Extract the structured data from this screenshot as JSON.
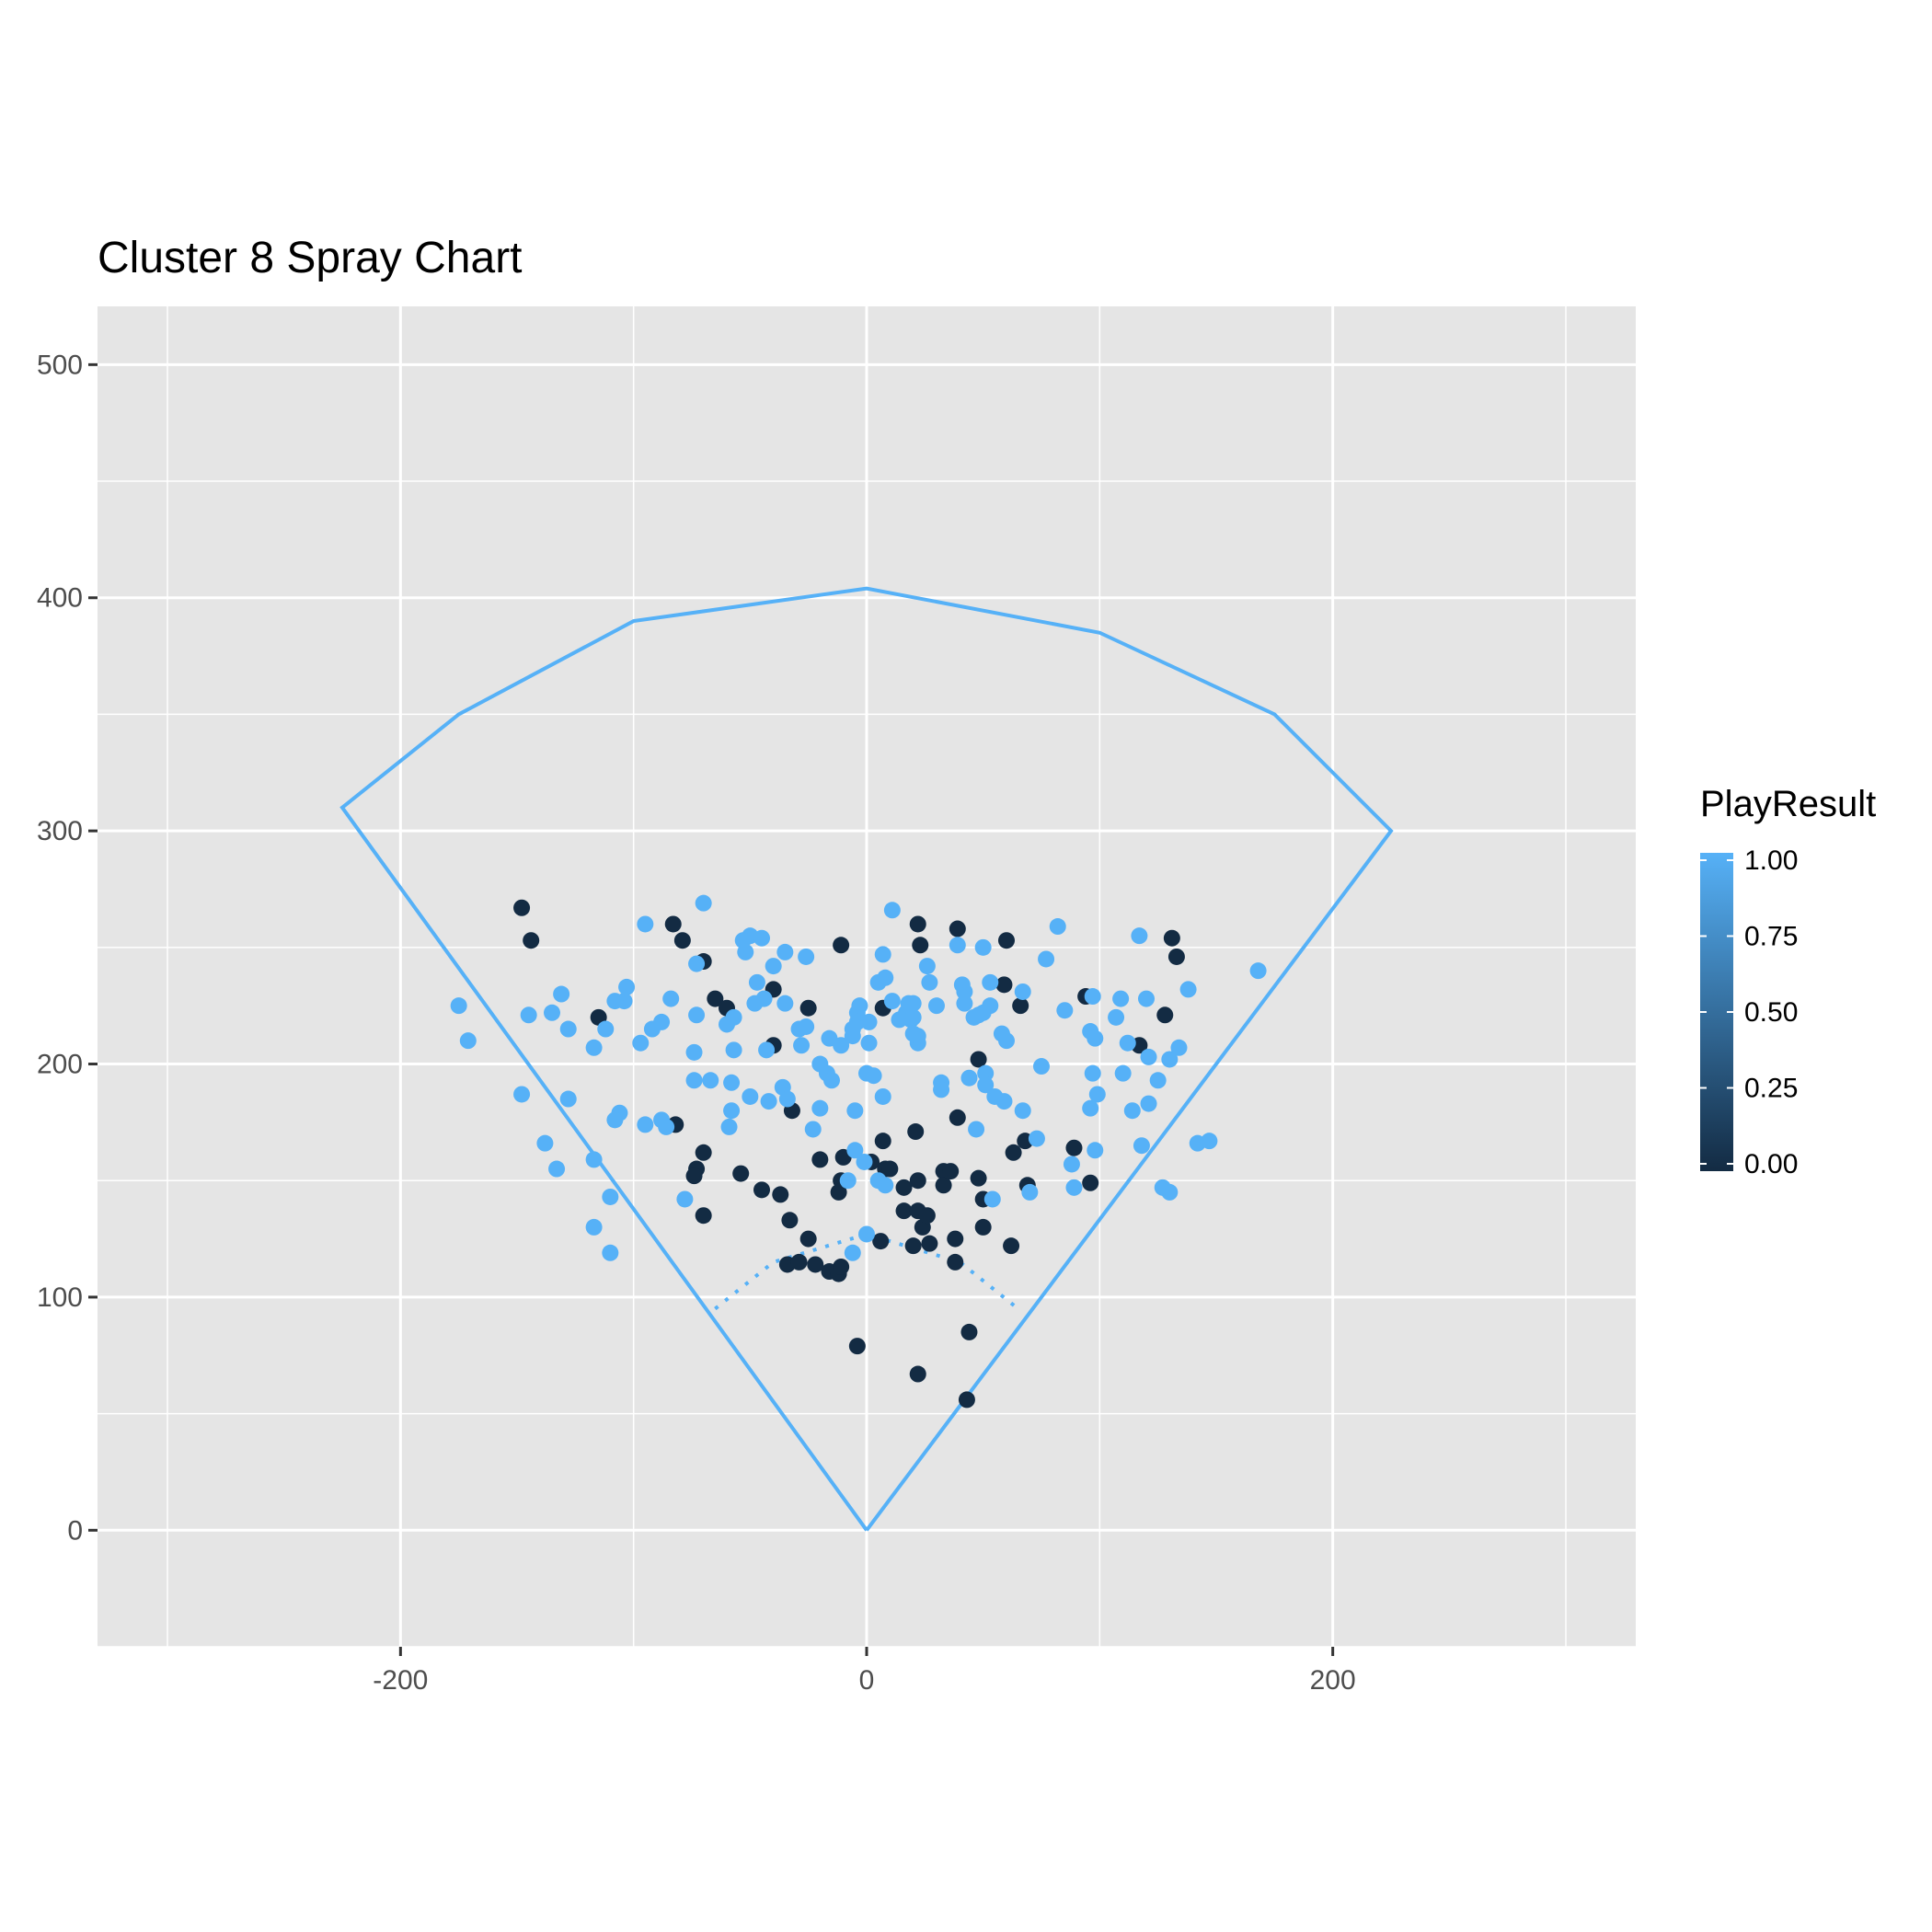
{
  "chart_data": {
    "type": "scatter",
    "title": "Cluster 8 Spray Chart",
    "xlabel": "",
    "ylabel": "",
    "xlim": [
      -330,
      330
    ],
    "ylim": [
      -50,
      525
    ],
    "x_ticks": [
      -200,
      0,
      200
    ],
    "x_tick_labels": [
      "-200",
      "0",
      "200"
    ],
    "y_ticks": [
      0,
      100,
      200,
      300,
      400,
      500
    ],
    "y_tick_labels": [
      "0",
      "100",
      "200",
      "300",
      "400",
      "500"
    ],
    "grid": true,
    "legend": {
      "position": "right",
      "title": "PlayResult",
      "type": "colorbar",
      "range": [
        0,
        1
      ],
      "breaks": [
        0,
        0.25,
        0.5,
        0.75,
        1
      ],
      "labels": [
        "0.00",
        "0.25",
        "0.50",
        "0.75",
        "1.00"
      ],
      "low_color": "#132B43",
      "high_color": "#56B1F7"
    },
    "field_outline": {
      "color": "#56B1F7",
      "outline": [
        [
          0,
          0
        ],
        [
          -225,
          310
        ],
        [
          -175,
          350
        ],
        [
          -100,
          390
        ],
        [
          0,
          404
        ],
        [
          100,
          385
        ],
        [
          175,
          350
        ],
        [
          225,
          300
        ],
        [
          0,
          0
        ]
      ],
      "infield_arc": [
        [
          -65,
          95
        ],
        [
          -40,
          115
        ],
        [
          0,
          127
        ],
        [
          40,
          115
        ],
        [
          65,
          95
        ]
      ]
    },
    "points": [
      [
        -148,
        267,
        0
      ],
      [
        -144,
        253,
        0
      ],
      [
        -83,
        260,
        0
      ],
      [
        -79,
        253,
        0
      ],
      [
        -70,
        244,
        0
      ],
      [
        -65,
        228,
        0
      ],
      [
        -60,
        224,
        0
      ],
      [
        -40,
        232,
        0
      ],
      [
        -25,
        224,
        0
      ],
      [
        -40,
        208,
        0
      ],
      [
        -32,
        180,
        0
      ],
      [
        -115,
        220,
        0
      ],
      [
        -82,
        174,
        0
      ],
      [
        -70,
        162,
        0
      ],
      [
        -73,
        155,
        0
      ],
      [
        -74,
        152,
        0
      ],
      [
        -70,
        135,
        0
      ],
      [
        -54,
        153,
        0
      ],
      [
        -45,
        146,
        0
      ],
      [
        -37,
        144,
        0
      ],
      [
        -33,
        133,
        0
      ],
      [
        -25,
        125,
        0
      ],
      [
        -34,
        114,
        0
      ],
      [
        -29,
        115,
        0
      ],
      [
        -22,
        114,
        0
      ],
      [
        -16,
        111,
        0
      ],
      [
        -12,
        110,
        0
      ],
      [
        -11,
        113,
        0
      ],
      [
        -20,
        159,
        0
      ],
      [
        -11,
        150,
        0
      ],
      [
        -12,
        145,
        0
      ],
      [
        -10,
        160,
        0
      ],
      [
        -11,
        251,
        0
      ],
      [
        7,
        224,
        0
      ],
      [
        22,
        260,
        0
      ],
      [
        23,
        251,
        0
      ],
      [
        39,
        258,
        0
      ],
      [
        60,
        253,
        0
      ],
      [
        59,
        234,
        0
      ],
      [
        66,
        225,
        0
      ],
      [
        94,
        229,
        0
      ],
      [
        131,
        254,
        0
      ],
      [
        133,
        246,
        0
      ],
      [
        128,
        221,
        0
      ],
      [
        117,
        208,
        0
      ],
      [
        48,
        202,
        0
      ],
      [
        39,
        177,
        0
      ],
      [
        68,
        167,
        0
      ],
      [
        63,
        162,
        0
      ],
      [
        21,
        171,
        0
      ],
      [
        7,
        167,
        0
      ],
      [
        2,
        158,
        0
      ],
      [
        8,
        155,
        0
      ],
      [
        10,
        155,
        0
      ],
      [
        16,
        147,
        0
      ],
      [
        16,
        137,
        0
      ],
      [
        22,
        150,
        0
      ],
      [
        22,
        137,
        0
      ],
      [
        24,
        130,
        0
      ],
      [
        26,
        135,
        0
      ],
      [
        27,
        123,
        0
      ],
      [
        20,
        122,
        0
      ],
      [
        33,
        154,
        0
      ],
      [
        33,
        148,
        0
      ],
      [
        36,
        154,
        0
      ],
      [
        38,
        125,
        0
      ],
      [
        38,
        115,
        0
      ],
      [
        48,
        151,
        0
      ],
      [
        50,
        142,
        0
      ],
      [
        50,
        130,
        0
      ],
      [
        69,
        148,
        0
      ],
      [
        62,
        122,
        0
      ],
      [
        89,
        164,
        0
      ],
      [
        96,
        149,
        0
      ],
      [
        6,
        124,
        0
      ],
      [
        -4,
        79,
        0
      ],
      [
        22,
        67,
        0
      ],
      [
        44,
        85,
        0
      ],
      [
        43,
        56,
        0
      ],
      [
        -70,
        269,
        1
      ],
      [
        -95,
        260,
        1
      ],
      [
        -50,
        255,
        1
      ],
      [
        -53,
        253,
        1
      ],
      [
        -45,
        254,
        1
      ],
      [
        -52,
        248,
        1
      ],
      [
        -35,
        248,
        1
      ],
      [
        -26,
        246,
        1
      ],
      [
        -40,
        242,
        1
      ],
      [
        -73,
        243,
        1
      ],
      [
        -47,
        235,
        1
      ],
      [
        -44,
        228,
        1
      ],
      [
        -48,
        226,
        1
      ],
      [
        -35,
        226,
        1
      ],
      [
        -57,
        220,
        1
      ],
      [
        -60,
        217,
        1
      ],
      [
        -73,
        221,
        1
      ],
      [
        -88,
        218,
        1
      ],
      [
        -92,
        215,
        1
      ],
      [
        -84,
        228,
        1
      ],
      [
        -103,
        233,
        1
      ],
      [
        -104,
        227,
        1
      ],
      [
        -108,
        227,
        1
      ],
      [
        -97,
        209,
        1
      ],
      [
        -112,
        215,
        1
      ],
      [
        -117,
        207,
        1
      ],
      [
        -128,
        215,
        1
      ],
      [
        -135,
        222,
        1
      ],
      [
        -131,
        230,
        1
      ],
      [
        -145,
        221,
        1
      ],
      [
        -175,
        225,
        1
      ],
      [
        -171,
        210,
        1
      ],
      [
        -43,
        206,
        1
      ],
      [
        -57,
        206,
        1
      ],
      [
        -74,
        205,
        1
      ],
      [
        -29,
        215,
        1
      ],
      [
        -28,
        208,
        1
      ],
      [
        -26,
        216,
        1
      ],
      [
        -20,
        200,
        1
      ],
      [
        -17,
        196,
        1
      ],
      [
        -16,
        211,
        1
      ],
      [
        -11,
        208,
        1
      ],
      [
        -6,
        212,
        1
      ],
      [
        -6,
        215,
        1
      ],
      [
        -4,
        218,
        1
      ],
      [
        -4,
        222,
        1
      ],
      [
        -3,
        225,
        1
      ],
      [
        1,
        218,
        1
      ],
      [
        1,
        209,
        1
      ],
      [
        5,
        235,
        1
      ],
      [
        7,
        247,
        1
      ],
      [
        8,
        237,
        1
      ],
      [
        11,
        266,
        1
      ],
      [
        11,
        227,
        1
      ],
      [
        14,
        219,
        1
      ],
      [
        17,
        222,
        1
      ],
      [
        18,
        226,
        1
      ],
      [
        19,
        219,
        1
      ],
      [
        20,
        213,
        1
      ],
      [
        20,
        226,
        1
      ],
      [
        20,
        220,
        1
      ],
      [
        22,
        209,
        1
      ],
      [
        22,
        212,
        1
      ],
      [
        26,
        242,
        1
      ],
      [
        27,
        235,
        1
      ],
      [
        30,
        225,
        1
      ],
      [
        32,
        192,
        1
      ],
      [
        32,
        189,
        1
      ],
      [
        39,
        251,
        1
      ],
      [
        41,
        234,
        1
      ],
      [
        42,
        231,
        1
      ],
      [
        42,
        226,
        1
      ],
      [
        44,
        194,
        1
      ],
      [
        46,
        220,
        1
      ],
      [
        48,
        221,
        1
      ],
      [
        50,
        222,
        1
      ],
      [
        50,
        250,
        1
      ],
      [
        51,
        196,
        1
      ],
      [
        51,
        191,
        1
      ],
      [
        53,
        225,
        1
      ],
      [
        53,
        235,
        1
      ],
      [
        55,
        186,
        1
      ],
      [
        58,
        213,
        1
      ],
      [
        59,
        184,
        1
      ],
      [
        60,
        210,
        1
      ],
      [
        67,
        231,
        1
      ],
      [
        67,
        180,
        1
      ],
      [
        70,
        145,
        1
      ],
      [
        73,
        168,
        1
      ],
      [
        75,
        199,
        1
      ],
      [
        77,
        245,
        1
      ],
      [
        82,
        259,
        1
      ],
      [
        85,
        223,
        1
      ],
      [
        88,
        157,
        1
      ],
      [
        89,
        147,
        1
      ],
      [
        96,
        214,
        1
      ],
      [
        97,
        229,
        1
      ],
      [
        96,
        181,
        1
      ],
      [
        97,
        196,
        1
      ],
      [
        98,
        163,
        1
      ],
      [
        98,
        211,
        1
      ],
      [
        99,
        187,
        1
      ],
      [
        107,
        220,
        1
      ],
      [
        109,
        228,
        1
      ],
      [
        110,
        196,
        1
      ],
      [
        112,
        209,
        1
      ],
      [
        114,
        180,
        1
      ],
      [
        117,
        255,
        1
      ],
      [
        118,
        165,
        1
      ],
      [
        120,
        228,
        1
      ],
      [
        121,
        203,
        1
      ],
      [
        121,
        183,
        1
      ],
      [
        125,
        193,
        1
      ],
      [
        127,
        147,
        1
      ],
      [
        130,
        145,
        1
      ],
      [
        130,
        202,
        1
      ],
      [
        134,
        207,
        1
      ],
      [
        138,
        232,
        1
      ],
      [
        142,
        166,
        1
      ],
      [
        147,
        167,
        1
      ],
      [
        168,
        240,
        1
      ],
      [
        -58,
        180,
        1
      ],
      [
        -59,
        173,
        1
      ],
      [
        -58,
        192,
        1
      ],
      [
        -50,
        186,
        1
      ],
      [
        -42,
        184,
        1
      ],
      [
        -36,
        190,
        1
      ],
      [
        -34,
        185,
        1
      ],
      [
        -23,
        172,
        1
      ],
      [
        -20,
        181,
        1
      ],
      [
        -15,
        193,
        1
      ],
      [
        -5,
        180,
        1
      ],
      [
        -5,
        163,
        1
      ],
      [
        -1,
        158,
        1
      ],
      [
        -8,
        150,
        1
      ],
      [
        0,
        196,
        1
      ],
      [
        3,
        195,
        1
      ],
      [
        7,
        186,
        1
      ],
      [
        5,
        150,
        1
      ],
      [
        8,
        148,
        1
      ],
      [
        -74,
        193,
        1
      ],
      [
        -67,
        193,
        1
      ],
      [
        -88,
        176,
        1
      ],
      [
        -86,
        173,
        1
      ],
      [
        -95,
        174,
        1
      ],
      [
        -106,
        179,
        1
      ],
      [
        -108,
        176,
        1
      ],
      [
        -117,
        159,
        1
      ],
      [
        -128,
        185,
        1
      ],
      [
        -133,
        155,
        1
      ],
      [
        -138,
        166,
        1
      ],
      [
        -148,
        187,
        1
      ],
      [
        -110,
        143,
        1
      ],
      [
        -117,
        130,
        1
      ],
      [
        -110,
        119,
        1
      ],
      [
        -78,
        142,
        1
      ],
      [
        -6,
        119,
        1
      ],
      [
        0,
        127,
        1
      ],
      [
        54,
        142,
        1
      ],
      [
        47,
        172,
        1
      ]
    ]
  }
}
